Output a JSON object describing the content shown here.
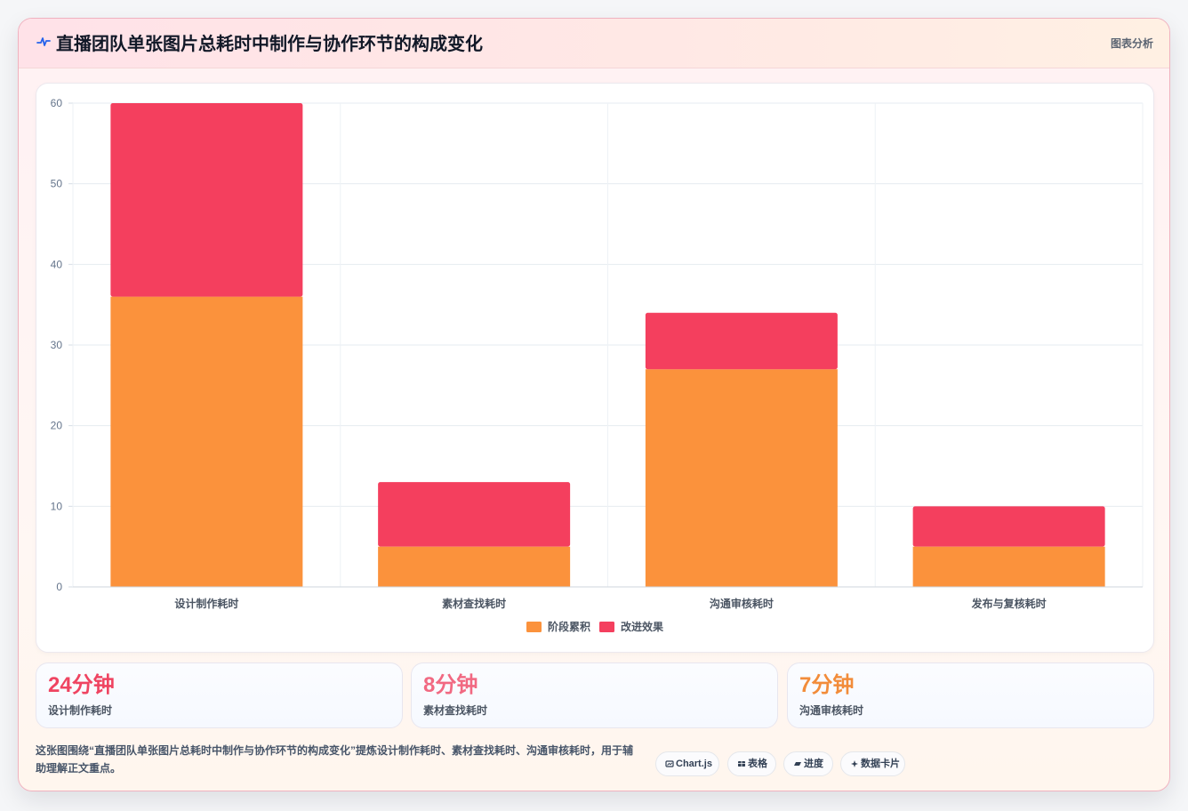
{
  "header": {
    "title": "直播团队单张图片总耗时中制作与协作环节的构成变化",
    "meta": "图表分析",
    "icon": "pulse-icon"
  },
  "chart_data": {
    "type": "bar",
    "stacked": true,
    "title": "",
    "xlabel": "",
    "ylabel": "",
    "categories": [
      "设计制作耗时",
      "素材查找耗时",
      "沟通审核耗时",
      "发布与复核耗时"
    ],
    "series": [
      {
        "name": "阶段累积",
        "values": [
          36,
          5,
          27,
          5
        ],
        "color": "#fb923c"
      },
      {
        "name": "改进效果",
        "values": [
          24,
          8,
          7,
          5
        ],
        "color": "#f43f5e"
      }
    ],
    "ylim": [
      0,
      60
    ],
    "yticks": [
      "0",
      "10",
      "20",
      "30",
      "40",
      "50",
      "60"
    ],
    "grid": true,
    "legend": "bottom"
  },
  "stats": [
    {
      "value": "24分钟",
      "label": "设计制作耗时",
      "color": "#ef4461"
    },
    {
      "value": "8分钟",
      "label": "素材查找耗时",
      "color": "#f16982"
    },
    {
      "value": "7分钟",
      "label": "沟通审核耗时",
      "color": "#f28c3a"
    }
  ],
  "footer": {
    "summary": "这张图围绕“直播团队单张图片总耗时中制作与协作环节的构成变化”提炼设计制作耗时、素材查找耗时、沟通审核耗时，用于辅助理解正文重点。",
    "tags": [
      {
        "label": "Chart.js",
        "icon": "chart-icon"
      },
      {
        "label": "表格",
        "icon": "table-icon"
      },
      {
        "label": "进度",
        "icon": "progress-icon"
      },
      {
        "label": "数据卡片",
        "icon": "card-icon"
      }
    ]
  }
}
